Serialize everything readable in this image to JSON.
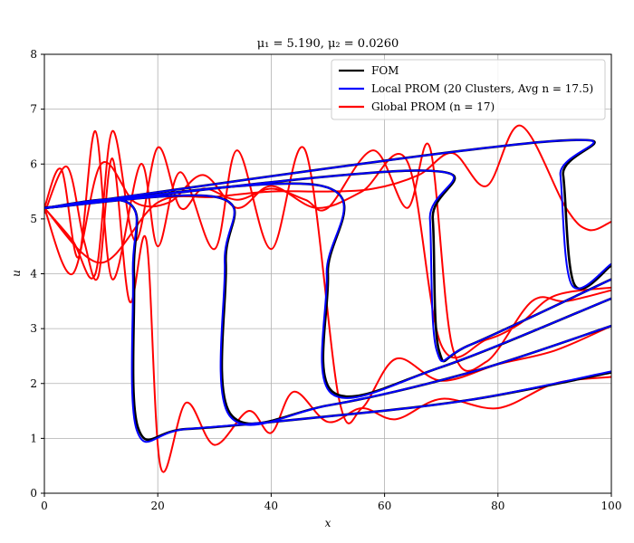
{
  "chart_data": {
    "type": "line",
    "title": "μ₁ = 5.190, μ₂ = 0.0260",
    "xlabel": "x",
    "ylabel": "u",
    "xlim": [
      0,
      100
    ],
    "ylim": [
      0,
      8
    ],
    "xticks": [
      "0",
      "20",
      "40",
      "60",
      "80",
      "100"
    ],
    "yticks": [
      "0",
      "1",
      "2",
      "3",
      "4",
      "5",
      "6",
      "7",
      "8"
    ],
    "grid": true,
    "legend_position": "top-right",
    "legend": [
      {
        "label": "FOM",
        "color": "#000000"
      },
      {
        "label": "Local PROM (20 Clusters, Avg n = 17.5)",
        "color": "#0000ff"
      },
      {
        "label": "Global PROM (n = 17)",
        "color": "#ff0000"
      }
    ],
    "series": [
      {
        "name": "FOM",
        "color": "#000000",
        "width": 2.6,
        "curves": [
          [
            [
              0,
              5.2
            ],
            [
              15,
              5.28
            ],
            [
              15.8,
              4.0
            ],
            [
              16.5,
              1.2
            ],
            [
              25,
              1.17
            ],
            [
              50,
              1.4
            ],
            [
              75,
              1.7
            ],
            [
              100,
              2.2
            ]
          ],
          [
            [
              0,
              5.2
            ],
            [
              31,
              5.38
            ],
            [
              32,
              4.2
            ],
            [
              32.8,
              1.45
            ],
            [
              50,
              1.6
            ],
            [
              75,
              2.2
            ],
            [
              100,
              3.05
            ]
          ],
          [
            [
              0,
              5.2
            ],
            [
              49,
              5.6
            ],
            [
              50,
              4.0
            ],
            [
              50.8,
              1.85
            ],
            [
              70,
              2.3
            ],
            [
              100,
              3.55
            ]
          ],
          [
            [
              0,
              5.2
            ],
            [
              67,
              5.88
            ],
            [
              68.5,
              5.0
            ],
            [
              69.6,
              2.6
            ],
            [
              75,
              2.7
            ],
            [
              100,
              3.9
            ]
          ],
          [
            [
              0,
              5.2
            ],
            [
              90,
              6.42
            ],
            [
              91.5,
              5.8
            ],
            [
              93.5,
              3.8
            ],
            [
              100,
              4.15
            ]
          ]
        ]
      },
      {
        "name": "Local PROM (20 Clusters, Avg n = 17.5)",
        "color": "#0000ff",
        "width": 2.0,
        "curves": [
          [
            [
              0,
              5.2
            ],
            [
              15,
              5.28
            ],
            [
              15.6,
              4.0
            ],
            [
              16.3,
              1.15
            ],
            [
              25,
              1.17
            ],
            [
              50,
              1.4
            ],
            [
              75,
              1.7
            ],
            [
              100,
              2.22
            ]
          ],
          [
            [
              0,
              5.2
            ],
            [
              31,
              5.38
            ],
            [
              31.8,
              4.2
            ],
            [
              32.6,
              1.42
            ],
            [
              50,
              1.6
            ],
            [
              75,
              2.2
            ],
            [
              100,
              3.05
            ]
          ],
          [
            [
              0,
              5.2
            ],
            [
              49,
              5.6
            ],
            [
              49.8,
              4.0
            ],
            [
              50.6,
              1.82
            ],
            [
              70,
              2.3
            ],
            [
              100,
              3.55
            ]
          ],
          [
            [
              0,
              5.2
            ],
            [
              67,
              5.88
            ],
            [
              68,
              5.0
            ],
            [
              69.2,
              2.6
            ],
            [
              75,
              2.7
            ],
            [
              100,
              3.9
            ]
          ],
          [
            [
              0,
              5.2
            ],
            [
              90,
              6.42
            ],
            [
              91,
              5.8
            ],
            [
              93,
              3.8
            ],
            [
              100,
              4.18
            ]
          ]
        ]
      },
      {
        "name": "Global PROM (n = 17)",
        "color": "#ff0000",
        "width": 2.0,
        "curves": [
          [
            [
              0,
              5.1
            ],
            [
              4,
              5.95
            ],
            [
              7,
              4.6
            ],
            [
              9.5,
              3.95
            ],
            [
              12,
              6.1
            ],
            [
              15,
              3.5
            ],
            [
              18,
              4.6
            ],
            [
              20.5,
              0.48
            ],
            [
              25,
              1.65
            ],
            [
              30,
              0.88
            ],
            [
              36,
              1.5
            ],
            [
              40,
              1.1
            ],
            [
              44,
              1.85
            ],
            [
              50,
              1.3
            ],
            [
              56,
              1.55
            ],
            [
              62,
              1.35
            ],
            [
              70,
              1.72
            ],
            [
              80,
              1.55
            ],
            [
              90,
              2.0
            ],
            [
              100,
              2.12
            ]
          ],
          [
            [
              0,
              5.2
            ],
            [
              3,
              5.9
            ],
            [
              6,
              4.3
            ],
            [
              9,
              6.6
            ],
            [
              12,
              3.9
            ],
            [
              17,
              6.0
            ],
            [
              20,
              4.5
            ],
            [
              24,
              5.85
            ],
            [
              30,
              4.45
            ],
            [
              34,
              6.25
            ],
            [
              40,
              4.45
            ],
            [
              46,
              6.25
            ],
            [
              52,
              1.7
            ],
            [
              56,
              1.55
            ],
            [
              62,
              2.45
            ],
            [
              70,
              2.05
            ],
            [
              80,
              2.35
            ],
            [
              90,
              2.6
            ],
            [
              100,
              3.05
            ]
          ],
          [
            [
              0,
              5.2
            ],
            [
              5,
              4.6
            ],
            [
              9,
              4.0
            ],
            [
              12,
              6.6
            ],
            [
              16,
              4.6
            ],
            [
              20,
              6.3
            ],
            [
              24,
              5.2
            ],
            [
              28,
              5.55
            ],
            [
              34,
              5.35
            ],
            [
              40,
              5.55
            ],
            [
              46,
              5.35
            ],
            [
              50,
              5.2
            ],
            [
              58,
              6.25
            ],
            [
              64,
              5.2
            ],
            [
              68,
              6.3
            ],
            [
              72,
              2.65
            ],
            [
              78,
              2.4
            ],
            [
              86,
              3.5
            ],
            [
              92,
              3.5
            ],
            [
              100,
              3.7
            ]
          ],
          [
            [
              0,
              5.2
            ],
            [
              5,
              4.0
            ],
            [
              10,
              6.0
            ],
            [
              16,
              5.3
            ],
            [
              22,
              5.3
            ],
            [
              28,
              5.8
            ],
            [
              34,
              5.2
            ],
            [
              40,
              5.6
            ],
            [
              48,
              5.2
            ],
            [
              56,
              5.5
            ],
            [
              64,
              6.05
            ],
            [
              70,
              2.7
            ],
            [
              78,
              2.8
            ],
            [
              84,
              3.1
            ],
            [
              90,
              3.6
            ],
            [
              100,
              3.75
            ]
          ],
          [
            [
              0,
              5.2
            ],
            [
              10,
              4.2
            ],
            [
              20,
              5.3
            ],
            [
              30,
              5.4
            ],
            [
              40,
              5.5
            ],
            [
              50,
              5.5
            ],
            [
              58,
              5.55
            ],
            [
              66,
              5.8
            ],
            [
              72,
              6.2
            ],
            [
              78,
              5.6
            ],
            [
              84,
              6.7
            ],
            [
              92,
              5.2
            ],
            [
              96,
              4.8
            ],
            [
              100,
              4.95
            ]
          ]
        ]
      }
    ]
  }
}
